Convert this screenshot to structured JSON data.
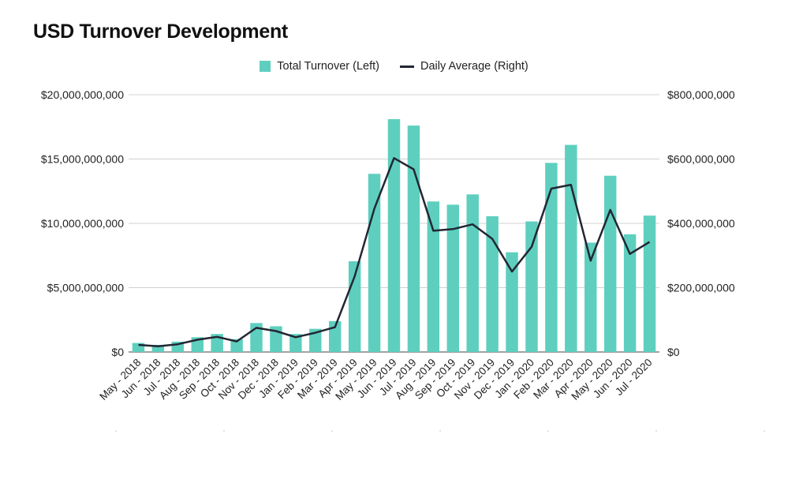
{
  "chart_data": {
    "type": "bar",
    "title": "USD Turnover Development",
    "categories": [
      "May - 2018",
      "Jun - 2018",
      "Jul - 2018",
      "Aug - 2018",
      "Sep - 2018",
      "Oct - 2018",
      "Nov - 2018",
      "Dec - 2018",
      "Jan - 2019",
      "Feb - 2019",
      "Mar - 2019",
      "Apr - 2019",
      "May - 2019",
      "Jun - 2019",
      "Jul - 2019",
      "Aug - 2019",
      "Sep - 2019",
      "Oct - 2019",
      "Nov - 2019",
      "Dec - 2019",
      "Jan - 2020",
      "Feb - 2020",
      "Mar - 2020",
      "Apr - 2020",
      "May - 2020",
      "Jun - 2020",
      "Jul - 2020"
    ],
    "series": [
      {
        "name": "Total Turnover (Left)",
        "type": "bar",
        "axis": "left",
        "color": "#5ecfbe",
        "values": [
          700000000,
          550000000,
          800000000,
          1150000000,
          1400000000,
          1000000000,
          2250000000,
          2000000000,
          1400000000,
          1800000000,
          2400000000,
          7050000000,
          13850000000,
          18100000000,
          17600000000,
          11700000000,
          11450000000,
          12250000000,
          10550000000,
          7750000000,
          10150000000,
          14700000000,
          16100000000,
          8500000000,
          13700000000,
          9150000000,
          10600000000
        ]
      },
      {
        "name": "Daily Average (Right)",
        "type": "line",
        "axis": "right",
        "color": "#232633",
        "values": [
          22000000,
          18000000,
          24000000,
          38000000,
          47000000,
          33000000,
          75000000,
          65000000,
          46000000,
          60000000,
          77000000,
          235000000,
          446000000,
          603000000,
          568000000,
          377000000,
          382000000,
          397000000,
          352000000,
          250000000,
          327000000,
          508000000,
          520000000,
          284000000,
          442000000,
          305000000,
          342000000
        ]
      }
    ],
    "left_axis": {
      "min": 0,
      "max": 20000000000,
      "ticks": [
        "$0",
        "$5,000,000,000",
        "$10,000,000,000",
        "$15,000,000,000",
        "$20,000,000,000"
      ]
    },
    "right_axis": {
      "min": 0,
      "max": 800000000,
      "ticks": [
        "$0",
        "$200,000,000",
        "$400,000,000",
        "$600,000,000",
        "$800,000,000"
      ]
    },
    "grid": true,
    "legend_position": "top-center"
  }
}
